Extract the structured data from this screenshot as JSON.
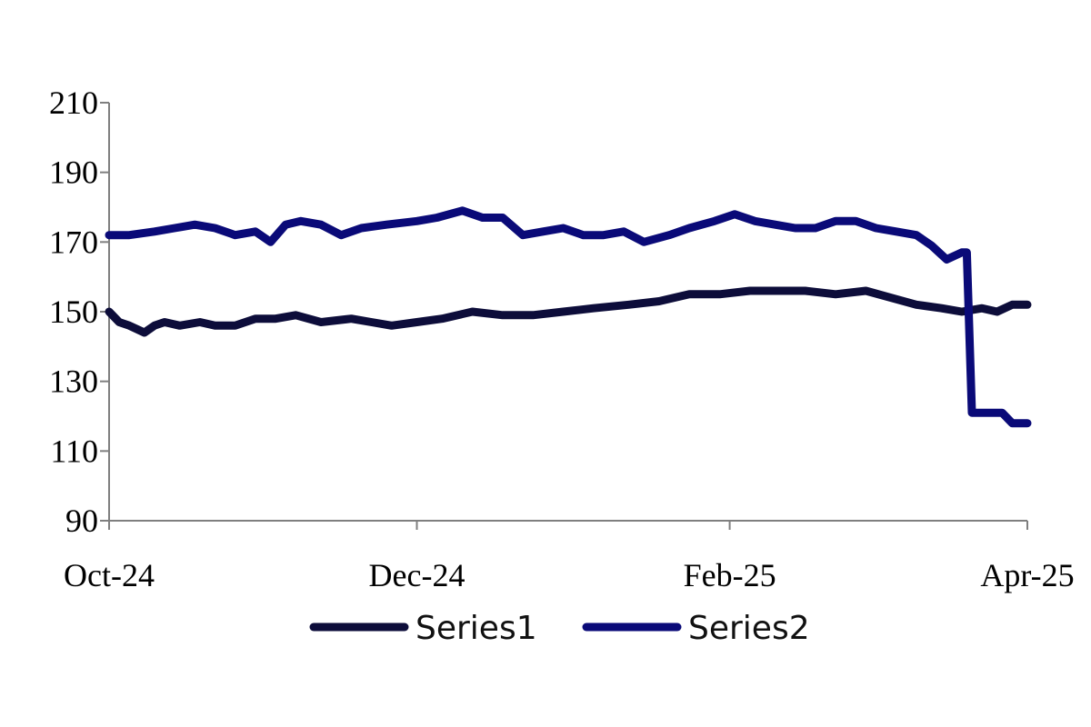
{
  "chart_data": {
    "type": "line",
    "title": "",
    "xlabel": "",
    "ylabel": "",
    "ylim": [
      90,
      210
    ],
    "y_ticks": [
      90,
      110,
      130,
      150,
      170,
      190,
      210
    ],
    "xlim": [
      "2024-10-01",
      "2025-04-01"
    ],
    "x_ticks": [
      {
        "date": "2024-10-01",
        "label": "Oct-24"
      },
      {
        "date": "2024-12-01",
        "label": "Dec-24"
      },
      {
        "date": "2025-02-01",
        "label": "Feb-25"
      },
      {
        "date": "2025-04-01",
        "label": "Apr-25"
      }
    ],
    "grid": false,
    "legend_position": "bottom",
    "series": [
      {
        "name": "Series1",
        "color": "#0d0d3a",
        "x": [
          "2024-10-01",
          "2024-10-03",
          "2024-10-05",
          "2024-10-08",
          "2024-10-10",
          "2024-10-12",
          "2024-10-15",
          "2024-10-19",
          "2024-10-22",
          "2024-10-26",
          "2024-10-30",
          "2024-11-03",
          "2024-11-07",
          "2024-11-12",
          "2024-11-18",
          "2024-11-22",
          "2024-11-26",
          "2024-12-01",
          "2024-12-06",
          "2024-12-12",
          "2024-12-18",
          "2024-12-24",
          "2024-12-30",
          "2025-01-05",
          "2025-01-12",
          "2025-01-18",
          "2025-01-24",
          "2025-01-30",
          "2025-02-05",
          "2025-02-10",
          "2025-02-16",
          "2025-02-22",
          "2025-02-28",
          "2025-03-05",
          "2025-03-10",
          "2025-03-15",
          "2025-03-19",
          "2025-03-23",
          "2025-03-26",
          "2025-03-29",
          "2025-04-01"
        ],
        "y": [
          150,
          147,
          146,
          144,
          146,
          147,
          146,
          147,
          146,
          146,
          148,
          148,
          149,
          147,
          148,
          147,
          146,
          147,
          148,
          150,
          149,
          149,
          150,
          151,
          152,
          153,
          155,
          155,
          156,
          156,
          156,
          155,
          156,
          154,
          152,
          151,
          150,
          151,
          150,
          152,
          152
        ]
      },
      {
        "name": "Series2",
        "color": "#0a0a78",
        "x": [
          "2024-10-01",
          "2024-10-05",
          "2024-10-10",
          "2024-10-14",
          "2024-10-18",
          "2024-10-22",
          "2024-10-26",
          "2024-10-30",
          "2024-11-02",
          "2024-11-05",
          "2024-11-08",
          "2024-11-12",
          "2024-11-16",
          "2024-11-20",
          "2024-11-25",
          "2024-12-01",
          "2024-12-05",
          "2024-12-10",
          "2024-12-14",
          "2024-12-18",
          "2024-12-22",
          "2024-12-26",
          "2024-12-30",
          "2025-01-03",
          "2025-01-07",
          "2025-01-11",
          "2025-01-15",
          "2025-01-20",
          "2025-01-24",
          "2025-01-29",
          "2025-02-02",
          "2025-02-06",
          "2025-02-10",
          "2025-02-14",
          "2025-02-18",
          "2025-02-22",
          "2025-02-26",
          "2025-03-02",
          "2025-03-06",
          "2025-03-10",
          "2025-03-13",
          "2025-03-16",
          "2025-03-19",
          "2025-03-20",
          "2025-03-21",
          "2025-03-24",
          "2025-03-27",
          "2025-03-29",
          "2025-04-01"
        ],
        "y": [
          172,
          172,
          173,
          174,
          175,
          174,
          172,
          173,
          170,
          175,
          176,
          175,
          172,
          174,
          175,
          176,
          177,
          179,
          177,
          177,
          172,
          173,
          174,
          172,
          172,
          173,
          170,
          172,
          174,
          176,
          178,
          176,
          175,
          174,
          174,
          176,
          176,
          174,
          173,
          172,
          169,
          165,
          167,
          167,
          121,
          121,
          121,
          118,
          118
        ]
      }
    ]
  }
}
